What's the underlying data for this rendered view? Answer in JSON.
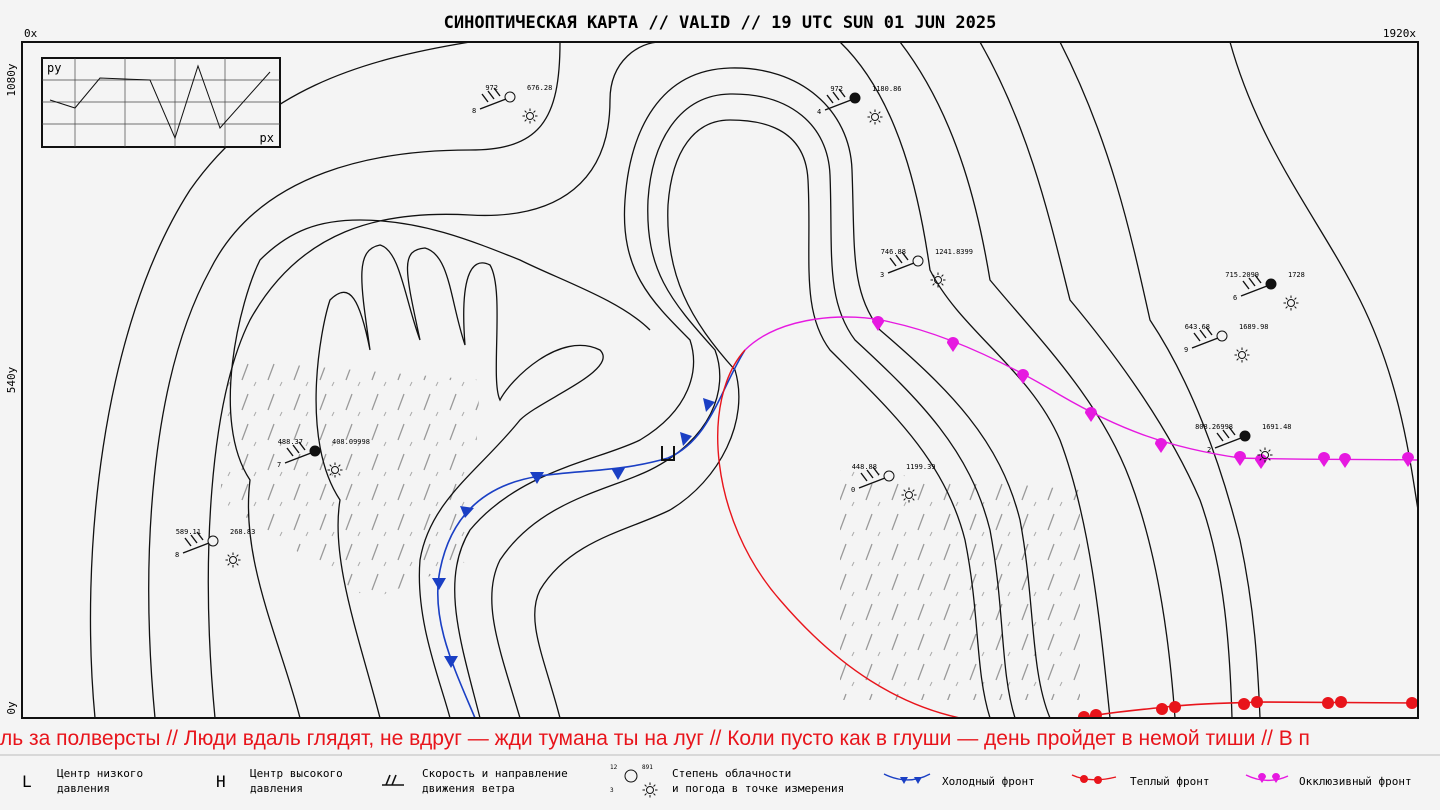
{
  "header": {
    "title": "СИНОПТИЧЕСКАЯ КАРТА // VALID // 19 UTC SUN 01 JUN 2025"
  },
  "axes": {
    "x_start": "0x",
    "x_end": "1920x",
    "y_top": "1080y",
    "y_mid": "540y",
    "y_bottom": "0y"
  },
  "inset": {
    "y_label": "py",
    "x_label": "px"
  },
  "stations": [
    {
      "left": "972",
      "right": "676.28",
      "below": "8"
    },
    {
      "left": "972",
      "right": "1180.86",
      "below": "4"
    },
    {
      "left": "746.88",
      "right": "1241.8399",
      "below": "3"
    },
    {
      "left": "715.2099",
      "right": "1728",
      "below": "6"
    },
    {
      "left": "643.68",
      "right": "1689.98",
      "below": "9"
    },
    {
      "left": "808.26998",
      "right": "1691.48",
      "below": "2"
    },
    {
      "left": "448.88",
      "right": "1199.39",
      "below": "0"
    },
    {
      "left": "488.37",
      "right": "408.09998",
      "below": "7"
    },
    {
      "left": "589.11",
      "right": "268.83",
      "below": "8"
    }
  ],
  "ticker": "ль за полверсты //  Люди вдаль глядят, не вдруг — жди тумана ты на луг // Коли пусто как в глуши — день пройдет в немой тиши // В п",
  "legend": [
    {
      "symbol": "L",
      "lines": [
        "Центр низкого",
        "давления"
      ]
    },
    {
      "symbol": "H",
      "lines": [
        "Центр высокого",
        "давления"
      ]
    },
    {
      "lines": [
        "Скорость и направление",
        "движения ветра"
      ]
    },
    {
      "lines": [
        "Степень облачности",
        "и погода в точке измерения"
      ],
      "codes": [
        "12",
        "891",
        "3"
      ]
    },
    {
      "lines": [
        "Холодный фронт"
      ]
    },
    {
      "lines": [
        "Теплый фронт"
      ]
    },
    {
      "lines": [
        "Окклюзивный фронт"
      ]
    }
  ]
}
